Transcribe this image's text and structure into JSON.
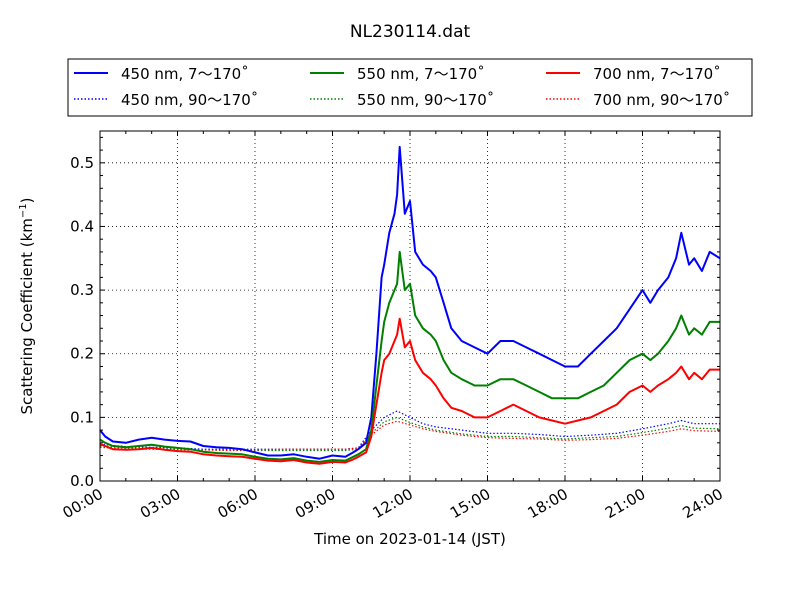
{
  "chart_data": {
    "type": "line",
    "title": "NL230114.dat",
    "xlabel": "Time on 2023-01-14 (JST)",
    "ylabel": "Scattering Coefficient (km",
    "ylabel_sup": "−1",
    "ylabel_end": ")",
    "xlim": [
      0,
      24
    ],
    "ylim": [
      0,
      0.55
    ],
    "x_ticks": [
      0,
      3,
      6,
      9,
      12,
      15,
      18,
      21,
      24
    ],
    "x_tick_labels": [
      "00:00",
      "03:00",
      "06:00",
      "09:00",
      "12:00",
      "15:00",
      "18:00",
      "21:00",
      "24:00"
    ],
    "y_ticks": [
      0.0,
      0.1,
      0.2,
      0.3,
      0.4,
      0.5
    ],
    "y_tick_labels": [
      "0.0",
      "0.1",
      "0.2",
      "0.3",
      "0.4",
      "0.5"
    ],
    "grid": true,
    "legend_position": "top",
    "series": [
      {
        "name": "450 nm, 7～170˚",
        "color": "#0000ff",
        "style": "solid",
        "x": [
          0,
          0.2,
          0.5,
          1,
          1.5,
          2,
          2.5,
          3,
          3.5,
          4,
          4.5,
          5,
          5.5,
          6,
          6.5,
          7,
          7.5,
          8,
          8.5,
          9,
          9.5,
          9.8,
          10,
          10.3,
          10.5,
          10.7,
          10.9,
          11.0,
          11.2,
          11.4,
          11.5,
          11.6,
          11.8,
          12.0,
          12.2,
          12.5,
          12.8,
          13.0,
          13.3,
          13.6,
          14.0,
          14.5,
          15.0,
          15.5,
          16.0,
          16.5,
          17.0,
          17.5,
          18.0,
          18.5,
          19.0,
          19.5,
          20.0,
          20.5,
          21.0,
          21.3,
          21.6,
          22.0,
          22.3,
          22.5,
          22.8,
          23.0,
          23.3,
          23.6,
          24.0
        ],
        "y": [
          0.08,
          0.07,
          0.062,
          0.06,
          0.065,
          0.068,
          0.065,
          0.063,
          0.062,
          0.055,
          0.053,
          0.052,
          0.05,
          0.045,
          0.04,
          0.04,
          0.042,
          0.038,
          0.035,
          0.04,
          0.038,
          0.045,
          0.05,
          0.06,
          0.1,
          0.2,
          0.32,
          0.34,
          0.39,
          0.42,
          0.45,
          0.525,
          0.42,
          0.44,
          0.36,
          0.34,
          0.33,
          0.32,
          0.28,
          0.24,
          0.22,
          0.21,
          0.2,
          0.22,
          0.22,
          0.21,
          0.2,
          0.19,
          0.18,
          0.18,
          0.2,
          0.22,
          0.24,
          0.27,
          0.3,
          0.28,
          0.3,
          0.32,
          0.35,
          0.39,
          0.34,
          0.35,
          0.33,
          0.36,
          0.35
        ]
      },
      {
        "name": "550 nm, 7～170˚",
        "color": "#008000",
        "style": "solid",
        "x": [
          0,
          0.2,
          0.5,
          1,
          1.5,
          2,
          2.5,
          3,
          3.5,
          4,
          4.5,
          5,
          5.5,
          6,
          6.5,
          7,
          7.5,
          8,
          8.5,
          9,
          9.5,
          9.8,
          10,
          10.3,
          10.5,
          10.7,
          10.9,
          11.0,
          11.2,
          11.4,
          11.5,
          11.6,
          11.8,
          12.0,
          12.2,
          12.5,
          12.8,
          13.0,
          13.3,
          13.6,
          14.0,
          14.5,
          15.0,
          15.5,
          16.0,
          16.5,
          17.0,
          17.5,
          18.0,
          18.5,
          19.0,
          19.5,
          20.0,
          20.5,
          21.0,
          21.3,
          21.6,
          22.0,
          22.3,
          22.5,
          22.8,
          23.0,
          23.3,
          23.6,
          24.0
        ],
        "y": [
          0.065,
          0.06,
          0.055,
          0.053,
          0.055,
          0.057,
          0.054,
          0.052,
          0.05,
          0.046,
          0.044,
          0.043,
          0.042,
          0.038,
          0.035,
          0.034,
          0.036,
          0.032,
          0.03,
          0.033,
          0.032,
          0.038,
          0.042,
          0.05,
          0.08,
          0.15,
          0.22,
          0.25,
          0.28,
          0.3,
          0.31,
          0.36,
          0.3,
          0.31,
          0.26,
          0.24,
          0.23,
          0.22,
          0.19,
          0.17,
          0.16,
          0.15,
          0.15,
          0.16,
          0.16,
          0.15,
          0.14,
          0.13,
          0.13,
          0.13,
          0.14,
          0.15,
          0.17,
          0.19,
          0.2,
          0.19,
          0.2,
          0.22,
          0.24,
          0.26,
          0.23,
          0.24,
          0.23,
          0.25,
          0.25
        ]
      },
      {
        "name": "700 nm, 7～170˚",
        "color": "#ff0000",
        "style": "solid",
        "x": [
          0,
          0.2,
          0.5,
          1,
          1.5,
          2,
          2.5,
          3,
          3.5,
          4,
          4.5,
          5,
          5.5,
          6,
          6.5,
          7,
          7.5,
          8,
          8.5,
          9,
          9.5,
          9.8,
          10,
          10.3,
          10.5,
          10.7,
          10.9,
          11.0,
          11.2,
          11.4,
          11.5,
          11.6,
          11.8,
          12.0,
          12.2,
          12.5,
          12.8,
          13.0,
          13.3,
          13.6,
          14.0,
          14.5,
          15.0,
          15.5,
          16.0,
          16.5,
          17.0,
          17.5,
          18.0,
          18.5,
          19.0,
          19.5,
          20.0,
          20.5,
          21.0,
          21.3,
          21.6,
          22.0,
          22.3,
          22.5,
          22.8,
          23.0,
          23.3,
          23.6,
          24.0
        ],
        "y": [
          0.058,
          0.055,
          0.05,
          0.049,
          0.05,
          0.052,
          0.049,
          0.047,
          0.046,
          0.042,
          0.04,
          0.039,
          0.038,
          0.035,
          0.032,
          0.031,
          0.033,
          0.029,
          0.027,
          0.03,
          0.029,
          0.034,
          0.038,
          0.045,
          0.07,
          0.12,
          0.17,
          0.19,
          0.2,
          0.22,
          0.23,
          0.255,
          0.21,
          0.22,
          0.19,
          0.17,
          0.16,
          0.15,
          0.13,
          0.115,
          0.11,
          0.1,
          0.1,
          0.11,
          0.12,
          0.11,
          0.1,
          0.095,
          0.09,
          0.095,
          0.1,
          0.11,
          0.12,
          0.14,
          0.15,
          0.14,
          0.15,
          0.16,
          0.17,
          0.18,
          0.16,
          0.17,
          0.16,
          0.175,
          0.175
        ]
      },
      {
        "name": "450 nm, 90～170˚",
        "color": "#0000ff",
        "style": "dotted",
        "x": [
          0,
          1,
          2,
          3,
          4,
          5,
          6,
          7,
          8,
          9,
          9.5,
          10,
          10.5,
          11,
          11.5,
          12,
          12.5,
          13,
          14,
          15,
          16,
          17,
          18,
          19,
          20,
          21,
          22,
          22.5,
          23,
          24
        ],
        "y": [
          0.058,
          0.054,
          0.053,
          0.052,
          0.05,
          0.05,
          0.05,
          0.05,
          0.05,
          0.05,
          0.05,
          0.052,
          0.08,
          0.1,
          0.11,
          0.1,
          0.09,
          0.085,
          0.08,
          0.075,
          0.075,
          0.073,
          0.07,
          0.072,
          0.075,
          0.082,
          0.09,
          0.095,
          0.09,
          0.09
        ]
      },
      {
        "name": "550 nm, 90～170˚",
        "color": "#008000",
        "style": "dotted",
        "x": [
          0,
          1,
          2,
          3,
          4,
          5,
          6,
          7,
          8,
          9,
          9.5,
          10,
          10.5,
          11,
          11.5,
          12,
          12.5,
          13,
          14,
          15,
          16,
          17,
          18,
          19,
          20,
          21,
          22,
          22.5,
          23,
          24
        ],
        "y": [
          0.055,
          0.052,
          0.051,
          0.05,
          0.049,
          0.048,
          0.048,
          0.048,
          0.048,
          0.048,
          0.048,
          0.05,
          0.075,
          0.093,
          0.1,
          0.092,
          0.085,
          0.08,
          0.074,
          0.07,
          0.07,
          0.068,
          0.066,
          0.068,
          0.07,
          0.076,
          0.083,
          0.087,
          0.083,
          0.082
        ]
      },
      {
        "name": "700 nm, 90～170˚",
        "color": "#ff0000",
        "style": "dotted",
        "x": [
          0,
          1,
          2,
          3,
          4,
          5,
          6,
          7,
          8,
          9,
          9.5,
          10,
          10.5,
          11,
          11.5,
          12,
          12.5,
          13,
          14,
          15,
          16,
          17,
          18,
          19,
          20,
          21,
          22,
          22.5,
          23,
          24
        ],
        "y": [
          0.053,
          0.05,
          0.05,
          0.049,
          0.049,
          0.048,
          0.049,
          0.05,
          0.05,
          0.05,
          0.05,
          0.052,
          0.072,
          0.088,
          0.094,
          0.088,
          0.082,
          0.078,
          0.072,
          0.068,
          0.067,
          0.066,
          0.064,
          0.065,
          0.067,
          0.072,
          0.078,
          0.082,
          0.079,
          0.078
        ]
      }
    ]
  }
}
